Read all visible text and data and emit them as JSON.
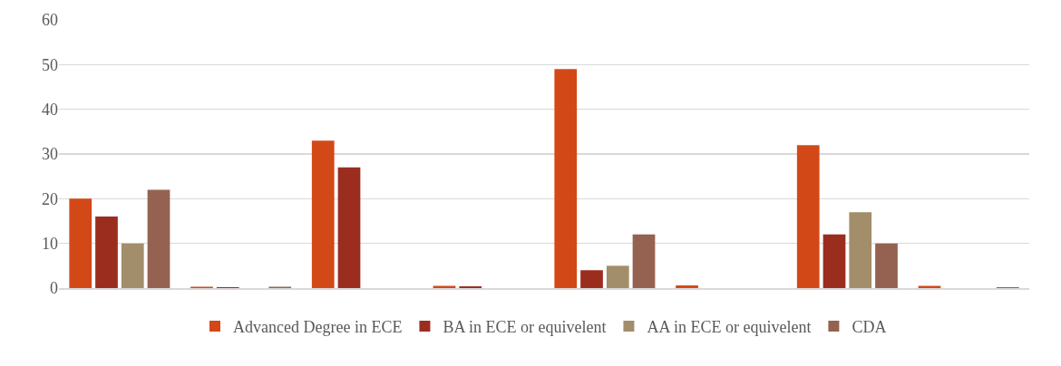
{
  "chart_data": {
    "type": "bar",
    "categories": [
      null,
      null,
      null,
      null,
      null,
      null,
      null,
      null
    ],
    "series": [
      {
        "name": "Advanced Degree in ECE",
        "color": "#d34817",
        "values": [
          20,
          0.3,
          33,
          0.5,
          49,
          0.6,
          32,
          0.5
        ]
      },
      {
        "name": "BA in ECE or equivelent",
        "color": "#9b2d1f",
        "values": [
          16,
          0.2,
          27,
          0.4,
          4,
          0,
          12,
          0
        ]
      },
      {
        "name": "AA in ECE or equivelent",
        "color": "#a28e6a",
        "values": [
          10,
          0,
          0,
          0,
          5,
          0,
          17,
          0
        ]
      },
      {
        "name": "CDA",
        "color": "#956251",
        "values": [
          22,
          0.3,
          0,
          0,
          12,
          0,
          10,
          0.2
        ]
      }
    ],
    "ylim": [
      0,
      60
    ],
    "yticks": [
      0,
      10,
      20,
      30,
      40,
      50,
      60
    ],
    "grid": "y",
    "legend": "bottom",
    "tick_labels": "y"
  }
}
